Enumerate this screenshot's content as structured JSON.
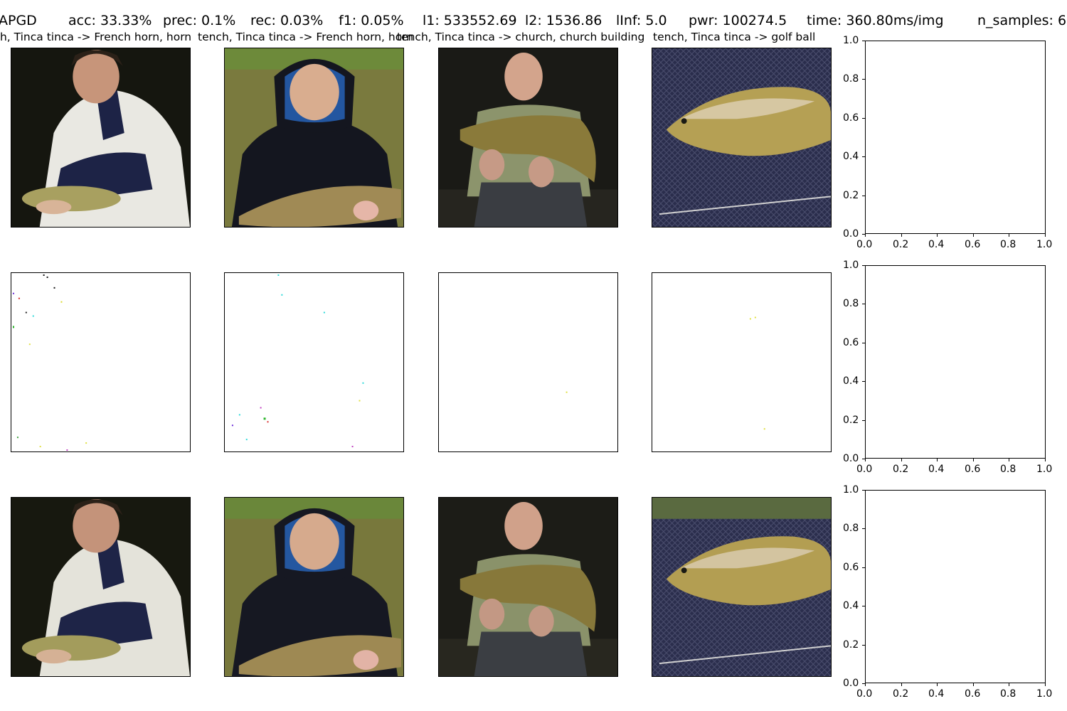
{
  "header": {
    "method": "APGD",
    "acc": "acc: 33.33%",
    "prec": "prec: 0.1%",
    "rec": "rec: 0.03%",
    "f1": "f1: 0.05%",
    "l1": "l1: 533552.69",
    "l2": "l2: 1536.86",
    "linf": "lInf: 5.0",
    "pwr": "pwr: 100274.5",
    "time": "time: 360.80ms/img",
    "n_samples": "n_samples: 6"
  },
  "captions": [
    "tench, Tinca tinca -> French horn, horn",
    "tench, Tinca tinca -> French horn, horn",
    "tench, Tinca tinca -> church, church building",
    "tench, Tinca tinca -> golf ball"
  ],
  "empty_axes": {
    "y_ticks": [
      "0.0",
      "0.2",
      "0.4",
      "0.6",
      "0.8",
      "1.0"
    ],
    "x_ticks": [
      "0.0",
      "0.2",
      "0.4",
      "0.6",
      "0.8",
      "1.0"
    ]
  },
  "colors": {
    "dark_background": "#1a1a14",
    "pond_green": "#7a7a3e",
    "net_navy": "#2a2d4c",
    "fish_gold": "#a8924a"
  }
}
